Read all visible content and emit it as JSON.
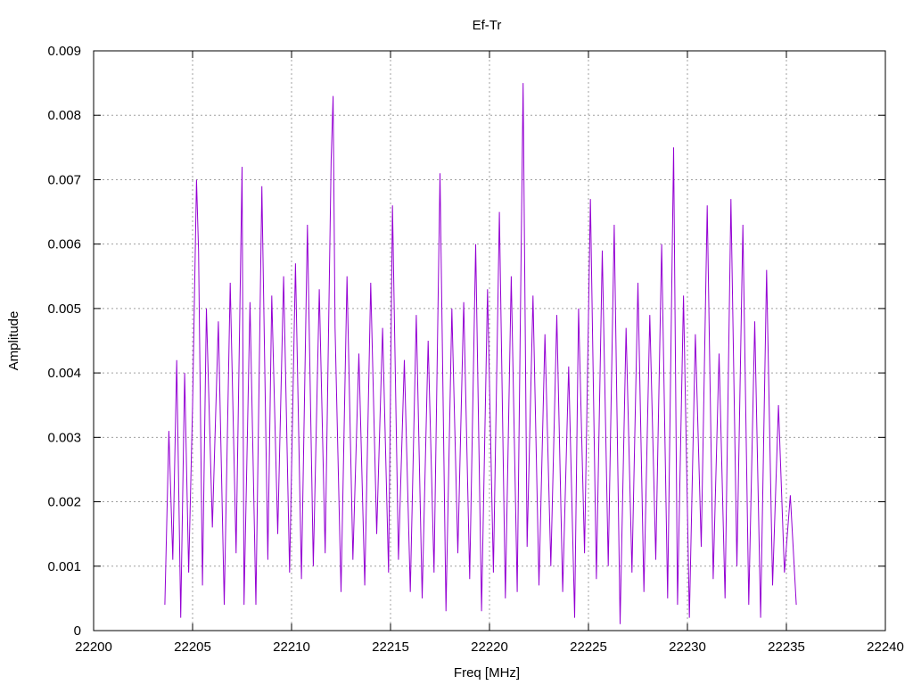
{
  "chart_data": {
    "type": "line",
    "title": "Ef-Tr",
    "xlabel": "Freq [MHz]",
    "ylabel": "Amplitude",
    "xlim": [
      22200,
      22240
    ],
    "ylim": [
      0,
      0.009
    ],
    "xticks": [
      "22200",
      "22205",
      "22210",
      "22215",
      "22220",
      "22225",
      "22230",
      "22235",
      "22240"
    ],
    "yticks": [
      "0",
      "0.001",
      "0.002",
      "0.003",
      "0.004",
      "0.005",
      "0.006",
      "0.007",
      "0.008",
      "0.009"
    ],
    "grid": true,
    "legend": "none",
    "series": [
      {
        "color": "#9400d3",
        "x": [
          22203.6,
          22203.8,
          22204.0,
          22204.2,
          22204.4,
          22204.6,
          22204.8,
          22205.0,
          22205.2,
          22205.3,
          22205.5,
          22205.7,
          22206.0,
          22206.3,
          22206.6,
          22206.9,
          22207.2,
          22207.5,
          22207.6,
          22207.9,
          22208.2,
          22208.5,
          22208.8,
          22209.0,
          22209.3,
          22209.6,
          22209.9,
          22210.2,
          22210.5,
          22210.8,
          22211.1,
          22211.4,
          22211.7,
          22212.0,
          22212.1,
          22212.2,
          22212.5,
          22212.8,
          22213.1,
          22213.4,
          22213.7,
          22214.0,
          22214.3,
          22214.6,
          22214.9,
          22215.1,
          22215.4,
          22215.7,
          22216.0,
          22216.3,
          22216.6,
          22216.9,
          22217.2,
          22217.5,
          22217.8,
          22218.1,
          22218.4,
          22218.7,
          22219.0,
          22219.3,
          22219.6,
          22219.9,
          22220.2,
          22220.5,
          22220.8,
          22221.1,
          22221.4,
          22221.7,
          22221.9,
          22222.2,
          22222.5,
          22222.8,
          22223.1,
          22223.4,
          22223.7,
          22224.0,
          22224.3,
          22224.5,
          22224.8,
          22225.1,
          22225.4,
          22225.7,
          22226.0,
          22226.3,
          22226.6,
          22226.9,
          22227.2,
          22227.5,
          22227.8,
          22228.1,
          22228.4,
          22228.7,
          22229.0,
          22229.3,
          22229.5,
          22229.8,
          22230.1,
          22230.4,
          22230.7,
          22231.0,
          22231.3,
          22231.6,
          22231.9,
          22232.2,
          22232.5,
          22232.8,
          22233.1,
          22233.4,
          22233.7,
          22234.0,
          22234.3,
          22234.6,
          22234.9,
          22235.2,
          22235.5
        ],
        "y": [
          0.0004,
          0.0031,
          0.0011,
          0.0042,
          0.0002,
          0.004,
          0.0009,
          0.0035,
          0.007,
          0.0059,
          0.0007,
          0.005,
          0.0016,
          0.0048,
          0.0004,
          0.0054,
          0.0012,
          0.0072,
          0.0004,
          0.0051,
          0.0004,
          0.0069,
          0.0011,
          0.0052,
          0.0015,
          0.0055,
          0.0009,
          0.0057,
          0.0008,
          0.0063,
          0.001,
          0.0053,
          0.0012,
          0.0073,
          0.0083,
          0.0047,
          0.0006,
          0.0055,
          0.0011,
          0.0043,
          0.0007,
          0.0054,
          0.0015,
          0.0047,
          0.0009,
          0.0066,
          0.0011,
          0.0042,
          0.0006,
          0.0049,
          0.0005,
          0.0045,
          0.0009,
          0.0071,
          0.0003,
          0.005,
          0.0012,
          0.0051,
          0.0008,
          0.006,
          0.0003,
          0.0053,
          0.0009,
          0.0065,
          0.0005,
          0.0055,
          0.0006,
          0.0085,
          0.0013,
          0.0052,
          0.0007,
          0.0046,
          0.001,
          0.0049,
          0.0006,
          0.0041,
          0.0002,
          0.005,
          0.0012,
          0.0067,
          0.0008,
          0.0059,
          0.001,
          0.0063,
          0.0001,
          0.0047,
          0.0009,
          0.0054,
          0.0006,
          0.0049,
          0.0011,
          0.006,
          0.0005,
          0.0075,
          0.0004,
          0.0052,
          0.0002,
          0.0046,
          0.0013,
          0.0066,
          0.0008,
          0.0043,
          0.0005,
          0.0067,
          0.001,
          0.0063,
          0.0004,
          0.0048,
          0.0002,
          0.0056,
          0.0007,
          0.0035,
          0.0009,
          0.0021,
          0.0004
        ]
      }
    ]
  }
}
